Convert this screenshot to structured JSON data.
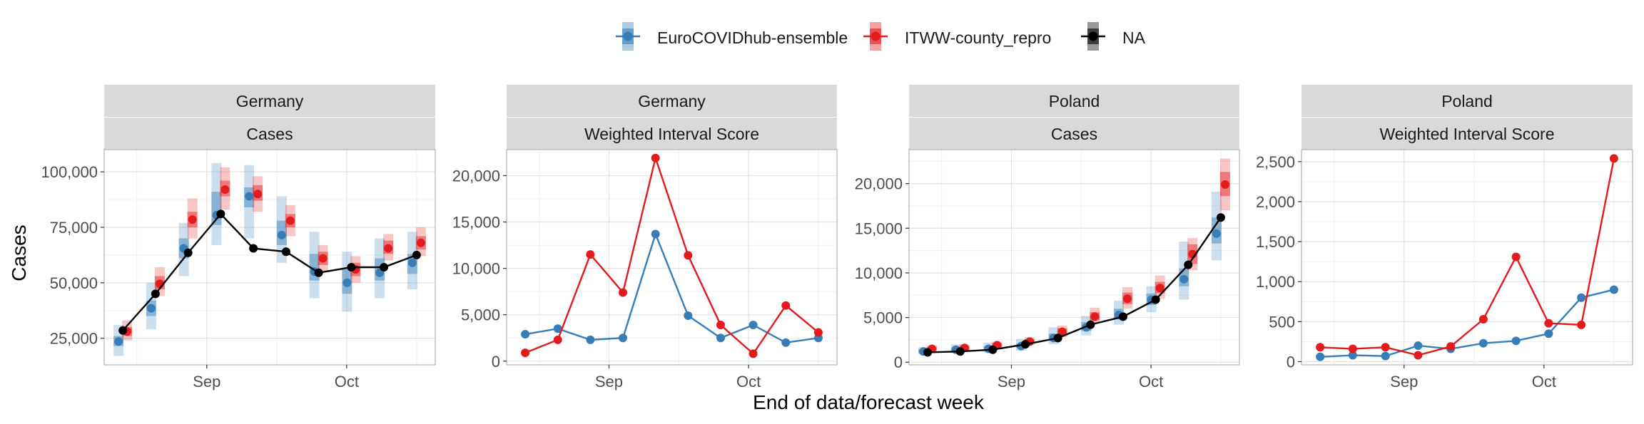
{
  "legend": {
    "position": "top",
    "entries": [
      {
        "name": "EuroCOVIDhub-ensemble",
        "color": "#377EB8"
      },
      {
        "name": "ITWW-county_repro",
        "color": "#E41A1C"
      },
      {
        "name": "NA",
        "color": "#000000"
      }
    ]
  },
  "xlabel": "End of data/forecast week",
  "ylabel": "Cases",
  "x_ticks": [
    "Sep",
    "Oct"
  ],
  "chart_data": [
    {
      "type": "line",
      "strip": [
        "Germany",
        "Cases"
      ],
      "ylim": [
        13000,
        110000
      ],
      "yticks": [
        25000,
        50000,
        75000,
        100000
      ],
      "ytick_labels": [
        "25,000",
        "50,000",
        "75,000",
        "100,000"
      ],
      "grid": true,
      "x": [
        "Aug 14",
        "Aug 21",
        "Aug 28",
        "Sep 4",
        "Sep 11",
        "Sep 18",
        "Sep 25",
        "Oct 2",
        "Oct 9",
        "Oct 16"
      ],
      "series": [
        {
          "name": "EuroCOVIDhub-ensemble",
          "values": [
            23500,
            38500,
            65500,
            80500,
            89000,
            71500,
            55000,
            50000,
            54500,
            59000
          ],
          "interval_50": [
            [
              21500,
              26000
            ],
            [
              35000,
              42000
            ],
            [
              61000,
              70000
            ],
            [
              76000,
              91000
            ],
            [
              84000,
              93000
            ],
            [
              67000,
              78000
            ],
            [
              51000,
              63000
            ],
            [
              45000,
              56000
            ],
            [
              51000,
              61000
            ],
            [
              54000,
              63000
            ]
          ],
          "interval_90": [
            [
              17000,
              31000
            ],
            [
              29000,
              50000
            ],
            [
              53000,
              77000
            ],
            [
              67000,
              104000
            ],
            [
              70000,
              103000
            ],
            [
              59000,
              89000
            ],
            [
              43000,
              73000
            ],
            [
              37000,
              64000
            ],
            [
              43000,
              70000
            ],
            [
              47000,
              73000
            ]
          ]
        },
        {
          "name": "ITWW-county_repro",
          "values": [
            28000,
            49500,
            78500,
            92000,
            90000,
            78000,
            61000,
            56000,
            65500,
            68000
          ],
          "interval_50": [
            [
              26000,
              30000
            ],
            [
              47000,
              53000
            ],
            [
              75000,
              82000
            ],
            [
              89000,
              96000
            ],
            [
              87000,
              94000
            ],
            [
              75000,
              81000
            ],
            [
              58000,
              64000
            ],
            [
              53000,
              59000
            ],
            [
              63000,
              69000
            ],
            [
              65000,
              71000
            ]
          ],
          "interval_90": [
            [
              24000,
              33000
            ],
            [
              44000,
              57000
            ],
            [
              70000,
              88000
            ],
            [
              83000,
              102000
            ],
            [
              82000,
              98000
            ],
            [
              71000,
              85000
            ],
            [
              55000,
              67000
            ],
            [
              50000,
              62000
            ],
            [
              60000,
              72000
            ],
            [
              62000,
              75000
            ]
          ]
        },
        {
          "name": "NA",
          "values": [
            28500,
            45000,
            63500,
            81000,
            65500,
            64000,
            54500,
            57000,
            57000,
            62500
          ]
        }
      ]
    },
    {
      "type": "line",
      "strip": [
        "Germany",
        "Weighted Interval Score"
      ],
      "ylim": [
        -400,
        22800
      ],
      "yticks": [
        0,
        5000,
        10000,
        15000,
        20000
      ],
      "ytick_labels": [
        "0",
        "5,000",
        "10,000",
        "15,000",
        "20,000"
      ],
      "grid": true,
      "x": [
        "Aug 14",
        "Aug 21",
        "Aug 28",
        "Sep 4",
        "Sep 11",
        "Sep 18",
        "Sep 25",
        "Oct 2",
        "Oct 9",
        "Oct 16"
      ],
      "series": [
        {
          "name": "EuroCOVIDhub-ensemble",
          "values": [
            2900,
            3500,
            2300,
            2500,
            13700,
            4900,
            2500,
            3900,
            2000,
            2500
          ]
        },
        {
          "name": "ITWW-county_repro",
          "values": [
            900,
            2300,
            11500,
            7400,
            21900,
            11400,
            3900,
            800,
            6000,
            3100
          ]
        }
      ]
    },
    {
      "type": "line",
      "strip": [
        "Poland",
        "Cases"
      ],
      "ylim": [
        -300,
        23800
      ],
      "yticks": [
        0,
        5000,
        10000,
        15000,
        20000
      ],
      "ytick_labels": [
        "0",
        "5,000",
        "10,000",
        "15,000",
        "20,000"
      ],
      "grid": true,
      "x": [
        "Aug 14",
        "Aug 21",
        "Aug 28",
        "Sep 4",
        "Sep 11",
        "Sep 18",
        "Sep 25",
        "Oct 2",
        "Oct 9",
        "Oct 16"
      ],
      "series": [
        {
          "name": "EuroCOVIDhub-ensemble",
          "values": [
            1200,
            1400,
            1500,
            1800,
            2700,
            3900,
            5300,
            7000,
            9300,
            14400
          ],
          "interval_50": [
            [
              1050,
              1400
            ],
            [
              1200,
              1650
            ],
            [
              1300,
              1800
            ],
            [
              1600,
              2100
            ],
            [
              2400,
              3200
            ],
            [
              3500,
              4500
            ],
            [
              4800,
              6000
            ],
            [
              6400,
              7700
            ],
            [
              8500,
              10500
            ],
            [
              13300,
              16200
            ]
          ],
          "interval_90": [
            [
              900,
              1700
            ],
            [
              1000,
              2000
            ],
            [
              1100,
              2200
            ],
            [
              1300,
              2600
            ],
            [
              2000,
              3900
            ],
            [
              3000,
              5200
            ],
            [
              4200,
              6900
            ],
            [
              5600,
              8500
            ],
            [
              7000,
              13500
            ],
            [
              11400,
              19100
            ]
          ]
        },
        {
          "name": "ITWW-county_repro",
          "values": [
            1500,
            1600,
            1900,
            2300,
            3400,
            5100,
            7100,
            8300,
            12100,
            19900
          ],
          "interval_50": [
            [
              1300,
              1700
            ],
            [
              1400,
              1800
            ],
            [
              1700,
              2100
            ],
            [
              2100,
              2600
            ],
            [
              3100,
              3800
            ],
            [
              4700,
              5600
            ],
            [
              6500,
              7800
            ],
            [
              7700,
              9000
            ],
            [
              11000,
              13200
            ],
            [
              18600,
              21300
            ]
          ],
          "interval_90": [
            [
              1150,
              1900
            ],
            [
              1250,
              2000
            ],
            [
              1500,
              2300
            ],
            [
              1900,
              2800
            ],
            [
              2800,
              4100
            ],
            [
              4300,
              6100
            ],
            [
              6000,
              8400
            ],
            [
              7100,
              9700
            ],
            [
              10300,
              13900
            ],
            [
              17000,
              22800
            ]
          ]
        },
        {
          "name": "NA",
          "values": [
            1100,
            1200,
            1400,
            2000,
            2700,
            4200,
            5100,
            7000,
            10900,
            16200
          ]
        }
      ]
    },
    {
      "type": "line",
      "strip": [
        "Poland",
        "Weighted Interval Score"
      ],
      "ylim": [
        -40,
        2650
      ],
      "yticks": [
        0,
        500,
        1000,
        1500,
        2000,
        2500
      ],
      "ytick_labels": [
        "0",
        "500",
        "1,000",
        "1,500",
        "2,000",
        "2,500"
      ],
      "grid": true,
      "x": [
        "Aug 14",
        "Aug 21",
        "Aug 28",
        "Sep 4",
        "Sep 11",
        "Sep 18",
        "Sep 25",
        "Oct 2",
        "Oct 9",
        "Oct 16"
      ],
      "series": [
        {
          "name": "EuroCOVIDhub-ensemble",
          "values": [
            60,
            80,
            70,
            200,
            160,
            230,
            260,
            350,
            800,
            900
          ]
        },
        {
          "name": "ITWW-county_repro",
          "values": [
            180,
            160,
            180,
            80,
            190,
            530,
            1310,
            480,
            460,
            2540
          ]
        }
      ]
    }
  ]
}
